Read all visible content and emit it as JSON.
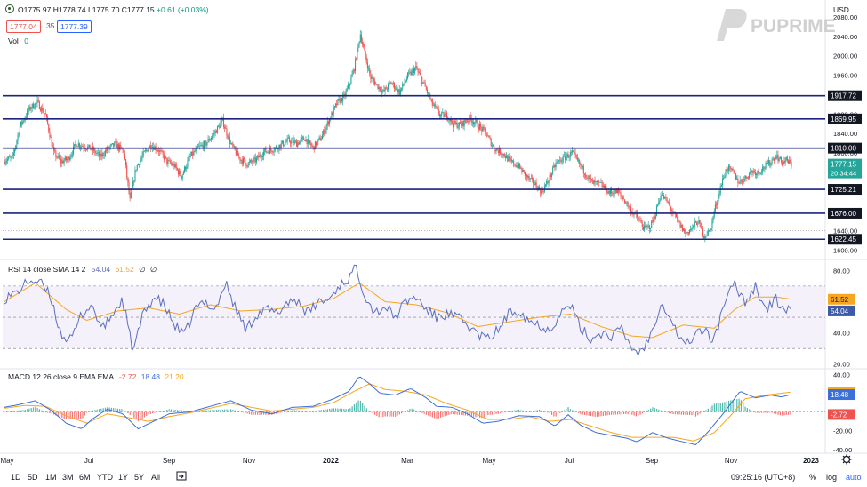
{
  "symbol_header": {
    "open": "O1775.97",
    "high": "H1778.74",
    "low": "L1775.70",
    "close": "C1777.15",
    "change": "+0.61 (+0.03%)",
    "bid": "1777.04",
    "spread": "35",
    "ask": "1777.39",
    "vol_label": "Vol",
    "vol_value": "0"
  },
  "brand": {
    "name": "PUPRIME"
  },
  "currency": "USD",
  "colors": {
    "up": "#26a69a",
    "down": "#ef5350",
    "level": "#1a237e",
    "rsi": "#5b6fbf",
    "signal": "#f5a623",
    "macd": "#3d6fd8",
    "hist_up": "#26a69a",
    "hist_down": "#ef5350",
    "band": "#ede7f6"
  },
  "chart_data": [
    {
      "type": "candlestick",
      "name": "price",
      "y_ticks": [
        "2080.00",
        "2040.00",
        "2000.00",
        "1960.00",
        "1880.00",
        "1840.00",
        "1800.00",
        "1640.00",
        "1600.00"
      ],
      "ylim": [
        1590,
        2100
      ],
      "levels": [
        1917.72,
        1869.95,
        1810.0,
        1725.21,
        1676.0,
        1622.45
      ],
      "level_labels": [
        "1917.72",
        "1869.95",
        "1810.00",
        "1725.21",
        "1676.00",
        "1622.45"
      ],
      "last_price": "1777.15",
      "countdown": "20:34:44",
      "anchors": [
        [
          0,
          1785
        ],
        [
          8,
          1790
        ],
        [
          15,
          1855
        ],
        [
          25,
          1893
        ],
        [
          32,
          1903
        ],
        [
          40,
          1878
        ],
        [
          48,
          1800
        ],
        [
          55,
          1782
        ],
        [
          62,
          1788
        ],
        [
          70,
          1820
        ],
        [
          78,
          1813
        ],
        [
          85,
          1808
        ],
        [
          93,
          1792
        ],
        [
          100,
          1808
        ],
        [
          108,
          1818
        ],
        [
          116,
          1802
        ],
        [
          122,
          1702
        ],
        [
          128,
          1770
        ],
        [
          135,
          1797
        ],
        [
          142,
          1817
        ],
        [
          150,
          1806
        ],
        [
          158,
          1782
        ],
        [
          165,
          1774
        ],
        [
          172,
          1752
        ],
        [
          180,
          1791
        ],
        [
          188,
          1810
        ],
        [
          196,
          1820
        ],
        [
          204,
          1841
        ],
        [
          212,
          1866
        ],
        [
          220,
          1818
        ],
        [
          228,
          1790
        ],
        [
          236,
          1777
        ],
        [
          244,
          1785
        ],
        [
          252,
          1802
        ],
        [
          260,
          1807
        ],
        [
          268,
          1816
        ],
        [
          276,
          1826
        ],
        [
          284,
          1820
        ],
        [
          292,
          1830
        ],
        [
          300,
          1811
        ],
        [
          308,
          1832
        ],
        [
          316,
          1870
        ],
        [
          324,
          1905
        ],
        [
          330,
          1915
        ],
        [
          336,
          1945
        ],
        [
          340,
          1975
        ],
        [
          346,
          2045
        ],
        [
          350,
          2005
        ],
        [
          356,
          1955
        ],
        [
          362,
          1940
        ],
        [
          368,
          1925
        ],
        [
          376,
          1945
        ],
        [
          384,
          1925
        ],
        [
          392,
          1958
        ],
        [
          400,
          1975
        ],
        [
          408,
          1940
        ],
        [
          416,
          1900
        ],
        [
          424,
          1877
        ],
        [
          430,
          1878
        ],
        [
          436,
          1859
        ],
        [
          444,
          1858
        ],
        [
          452,
          1872
        ],
        [
          460,
          1858
        ],
        [
          468,
          1840
        ],
        [
          476,
          1810
        ],
        [
          484,
          1800
        ],
        [
          492,
          1782
        ],
        [
          500,
          1772
        ],
        [
          508,
          1750
        ],
        [
          516,
          1735
        ],
        [
          522,
          1720
        ],
        [
          528,
          1740
        ],
        [
          536,
          1778
        ],
        [
          544,
          1790
        ],
        [
          552,
          1800
        ],
        [
          560,
          1773
        ],
        [
          566,
          1754
        ],
        [
          572,
          1738
        ],
        [
          580,
          1735
        ],
        [
          588,
          1718
        ],
        [
          596,
          1720
        ],
        [
          602,
          1705
        ],
        [
          610,
          1680
        ],
        [
          616,
          1665
        ],
        [
          622,
          1644
        ],
        [
          628,
          1650
        ],
        [
          632,
          1670
        ],
        [
          638,
          1716
        ],
        [
          644,
          1700
        ],
        [
          650,
          1676
        ],
        [
          656,
          1654
        ],
        [
          662,
          1634
        ],
        [
          668,
          1645
        ],
        [
          674,
          1660
        ],
        [
          680,
          1630
        ],
        [
          686,
          1640
        ],
        [
          690,
          1680
        ],
        [
          696,
          1730
        ],
        [
          702,
          1770
        ],
        [
          708,
          1760
        ],
        [
          714,
          1740
        ],
        [
          720,
          1748
        ],
        [
          726,
          1763
        ],
        [
          732,
          1760
        ],
        [
          738,
          1770
        ],
        [
          744,
          1780
        ],
        [
          750,
          1795
        ],
        [
          756,
          1780
        ],
        [
          760,
          1785
        ],
        [
          765,
          1777
        ]
      ]
    },
    {
      "type": "line",
      "name": "RSI",
      "header": "RSI 14 close SMA 14 2",
      "header_values": [
        "54.04",
        "61.52",
        "∅",
        "∅"
      ],
      "y_ticks": [
        "80.00",
        "60.00",
        "40.00",
        "20.00"
      ],
      "ylim": [
        17,
        87
      ],
      "bands": [
        70,
        50,
        30
      ],
      "last_rsi": "54.04",
      "last_sma": "61.52",
      "anchors": [
        [
          0,
          62
        ],
        [
          12,
          66
        ],
        [
          25,
          74
        ],
        [
          35,
          72
        ],
        [
          45,
          63
        ],
        [
          55,
          39
        ],
        [
          65,
          35
        ],
        [
          75,
          52
        ],
        [
          85,
          58
        ],
        [
          95,
          42
        ],
        [
          105,
          52
        ],
        [
          115,
          61
        ],
        [
          125,
          28
        ],
        [
          135,
          52
        ],
        [
          145,
          63
        ],
        [
          155,
          58
        ],
        [
          165,
          45
        ],
        [
          175,
          38
        ],
        [
          185,
          55
        ],
        [
          195,
          60
        ],
        [
          205,
          55
        ],
        [
          215,
          72
        ],
        [
          225,
          55
        ],
        [
          235,
          42
        ],
        [
          245,
          52
        ],
        [
          255,
          55
        ],
        [
          265,
          52
        ],
        [
          275,
          60
        ],
        [
          285,
          61
        ],
        [
          295,
          52
        ],
        [
          305,
          60
        ],
        [
          315,
          61
        ],
        [
          325,
          70
        ],
        [
          335,
          75
        ],
        [
          342,
          82
        ],
        [
          350,
          65
        ],
        [
          360,
          53
        ],
        [
          370,
          57
        ],
        [
          380,
          50
        ],
        [
          390,
          60
        ],
        [
          400,
          63
        ],
        [
          410,
          55
        ],
        [
          420,
          50
        ],
        [
          430,
          52
        ],
        [
          440,
          50
        ],
        [
          450,
          45
        ],
        [
          460,
          39
        ],
        [
          470,
          36
        ],
        [
          480,
          42
        ],
        [
          490,
          52
        ],
        [
          500,
          55
        ],
        [
          510,
          48
        ],
        [
          520,
          45
        ],
        [
          530,
          42
        ],
        [
          540,
          52
        ],
        [
          550,
          58
        ],
        [
          560,
          43
        ],
        [
          570,
          36
        ],
        [
          580,
          40
        ],
        [
          590,
          38
        ],
        [
          600,
          42
        ],
        [
          608,
          32
        ],
        [
          616,
          27
        ],
        [
          624,
          33
        ],
        [
          630,
          42
        ],
        [
          638,
          60
        ],
        [
          646,
          52
        ],
        [
          654,
          40
        ],
        [
          662,
          32
        ],
        [
          670,
          38
        ],
        [
          676,
          42
        ],
        [
          682,
          40
        ],
        [
          688,
          35
        ],
        [
          694,
          45
        ],
        [
          700,
          60
        ],
        [
          710,
          71
        ],
        [
          720,
          60
        ],
        [
          730,
          70
        ],
        [
          740,
          55
        ],
        [
          750,
          61
        ],
        [
          756,
          56
        ],
        [
          765,
          54
        ]
      ],
      "sma_anchors": [
        [
          0,
          60
        ],
        [
          30,
          72
        ],
        [
          60,
          55
        ],
        [
          80,
          48
        ],
        [
          110,
          54
        ],
        [
          140,
          56
        ],
        [
          170,
          52
        ],
        [
          200,
          58
        ],
        [
          230,
          54
        ],
        [
          260,
          55
        ],
        [
          290,
          57
        ],
        [
          320,
          62
        ],
        [
          345,
          72
        ],
        [
          370,
          60
        ],
        [
          400,
          58
        ],
        [
          430,
          53
        ],
        [
          460,
          44
        ],
        [
          490,
          47
        ],
        [
          520,
          50
        ],
        [
          550,
          52
        ],
        [
          580,
          44
        ],
        [
          610,
          38
        ],
        [
          630,
          37
        ],
        [
          660,
          45
        ],
        [
          690,
          43
        ],
        [
          710,
          55
        ],
        [
          730,
          63
        ],
        [
          750,
          63
        ],
        [
          765,
          61.5
        ]
      ]
    },
    {
      "type": "line",
      "name": "MACD",
      "header": "MACD 12 26 close 9 EMA EMA",
      "header_values": [
        "-2.72",
        "18.48",
        "21.20"
      ],
      "y_ticks": [
        "40.00",
        "20.00",
        "-20.00",
        "-40.00"
      ],
      "ylim": [
        -44,
        46
      ],
      "last_hist": "-2.72",
      "last_macd": "18.48",
      "last_signal": "21.20",
      "macd_anchors": [
        [
          0,
          5
        ],
        [
          15,
          8
        ],
        [
          30,
          12
        ],
        [
          45,
          2
        ],
        [
          60,
          -12
        ],
        [
          75,
          -18
        ],
        [
          85,
          -8
        ],
        [
          100,
          3
        ],
        [
          115,
          -2
        ],
        [
          130,
          -18
        ],
        [
          145,
          -10
        ],
        [
          160,
          -2
        ],
        [
          180,
          0
        ],
        [
          200,
          6
        ],
        [
          220,
          12
        ],
        [
          240,
          2
        ],
        [
          260,
          -2
        ],
        [
          280,
          5
        ],
        [
          300,
          6
        ],
        [
          320,
          14
        ],
        [
          335,
          22
        ],
        [
          345,
          38
        ],
        [
          355,
          30
        ],
        [
          365,
          20
        ],
        [
          380,
          18
        ],
        [
          395,
          25
        ],
        [
          410,
          15
        ],
        [
          420,
          6
        ],
        [
          435,
          5
        ],
        [
          450,
          -2
        ],
        [
          465,
          -12
        ],
        [
          480,
          -10
        ],
        [
          500,
          -4
        ],
        [
          520,
          -5
        ],
        [
          535,
          -15
        ],
        [
          548,
          -3
        ],
        [
          560,
          -14
        ],
        [
          575,
          -22
        ],
        [
          590,
          -25
        ],
        [
          605,
          -28
        ],
        [
          615,
          -32
        ],
        [
          630,
          -22
        ],
        [
          645,
          -28
        ],
        [
          660,
          -32
        ],
        [
          672,
          -35
        ],
        [
          685,
          -20
        ],
        [
          700,
          0
        ],
        [
          715,
          22
        ],
        [
          730,
          15
        ],
        [
          745,
          18
        ],
        [
          755,
          16
        ],
        [
          765,
          18.5
        ]
      ],
      "signal_anchors": [
        [
          0,
          4
        ],
        [
          20,
          7
        ],
        [
          40,
          6
        ],
        [
          60,
          -4
        ],
        [
          80,
          -12
        ],
        [
          100,
          -2
        ],
        [
          120,
          -6
        ],
        [
          140,
          -10
        ],
        [
          160,
          -5
        ],
        [
          180,
          -1
        ],
        [
          200,
          4
        ],
        [
          220,
          9
        ],
        [
          240,
          5
        ],
        [
          260,
          1
        ],
        [
          280,
          3
        ],
        [
          300,
          5
        ],
        [
          320,
          10
        ],
        [
          340,
          22
        ],
        [
          355,
          30
        ],
        [
          370,
          24
        ],
        [
          390,
          22
        ],
        [
          410,
          18
        ],
        [
          430,
          9
        ],
        [
          450,
          2
        ],
        [
          470,
          -8
        ],
        [
          490,
          -8
        ],
        [
          510,
          -5
        ],
        [
          530,
          -10
        ],
        [
          550,
          -8
        ],
        [
          570,
          -15
        ],
        [
          590,
          -22
        ],
        [
          610,
          -27
        ],
        [
          630,
          -27
        ],
        [
          650,
          -27
        ],
        [
          670,
          -31
        ],
        [
          690,
          -22
        ],
        [
          705,
          -5
        ],
        [
          720,
          14
        ],
        [
          740,
          18
        ],
        [
          765,
          21.2
        ]
      ]
    }
  ],
  "x_axis": {
    "labels": [
      [
        "May",
        8
      ],
      [
        "Jul",
        100
      ],
      [
        "Sep",
        190
      ],
      [
        "Nov",
        280
      ],
      [
        "2022",
        372
      ],
      [
        "Mar",
        458
      ],
      [
        "May",
        550
      ],
      [
        "Jul",
        640
      ],
      [
        "Sep",
        733
      ],
      [
        "Nov",
        822
      ],
      [
        "2023",
        912
      ]
    ]
  },
  "toolbar": {
    "ranges": [
      "1D",
      "5D",
      "1M",
      "3M",
      "6M",
      "YTD",
      "1Y",
      "5Y",
      "All"
    ],
    "time": "09:25:16 (UTC+8)",
    "percent": "%",
    "log": "log",
    "auto": "auto"
  }
}
